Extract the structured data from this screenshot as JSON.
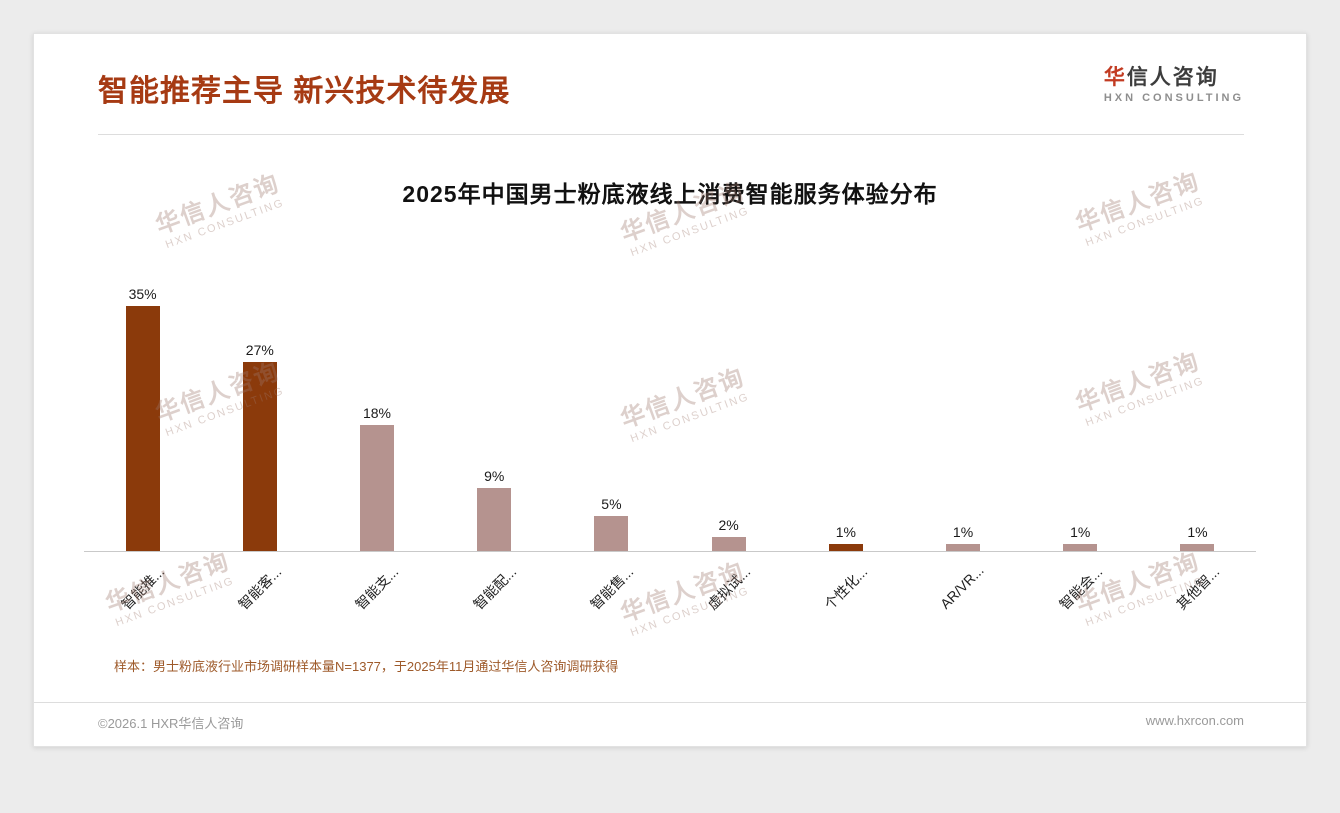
{
  "page": {
    "header": {
      "title": "智能推荐主导 新兴技术待发展"
    },
    "logo": {
      "name_first": "华",
      "name_rest": "信人咨询",
      "subtitle": "HXN CONSULTING"
    },
    "watermark": {
      "line1": "华信人咨询",
      "line2": "HXN CONSULTING"
    },
    "note": "样本：男士粉底液行业市场调研样本量N=1377，于2025年11月通过华信人咨询调研获得",
    "footer": {
      "left": "©2026.1 HXR华信人咨询",
      "right": "www.hxrcon.com"
    },
    "theme": {
      "accent": "#A63A13",
      "bar_dark": "#8B3A0B",
      "bar_light": "#B5938F",
      "note_color": "#9E5A2A",
      "footer_color": "#9A9A9A"
    }
  },
  "chart_data": {
    "type": "bar",
    "title": "2025年中国男士粉底液线上消费智能服务体验分布",
    "categories": [
      "智能推...",
      "智能客...",
      "智能支...",
      "智能配...",
      "智能售...",
      "虚拟试...",
      "个性化...",
      "AR/VR...",
      "智能会...",
      "其他智..."
    ],
    "values": [
      35,
      27,
      18,
      9,
      5,
      2,
      1,
      1,
      1,
      1
    ],
    "value_labels": [
      "35%",
      "27%",
      "18%",
      "9%",
      "5%",
      "2%",
      "1%",
      "1%",
      "1%",
      "1%"
    ],
    "bar_colors": [
      "#8B3A0B",
      "#8B3A0B",
      "#B5938F",
      "#B5938F",
      "#B5938F",
      "#B5938F",
      "#8B3A0B",
      "#B5938F",
      "#B5938F",
      "#B5938F"
    ],
    "ylim": [
      0,
      38
    ],
    "xlabel": "",
    "ylabel": "",
    "grid": false,
    "legend": "none",
    "x_tick_rotation": 45
  }
}
